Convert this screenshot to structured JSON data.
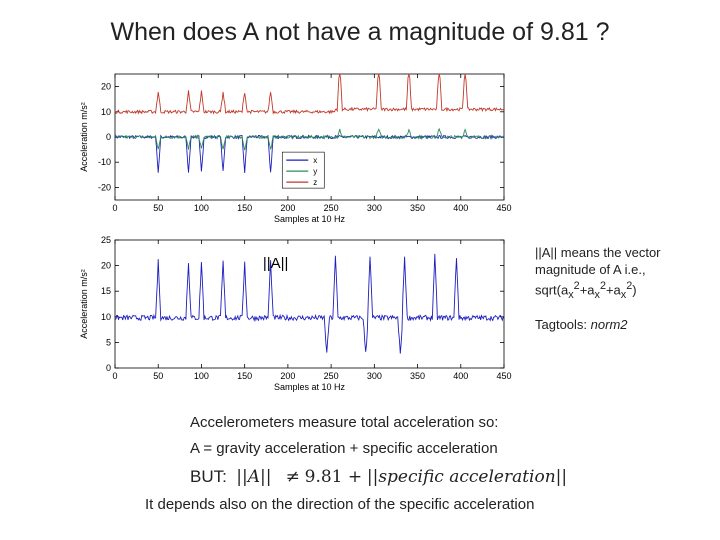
{
  "title": "When does A not have a magnitude of 9.81 ?",
  "side_text": {
    "line1": "||A|| means the vector",
    "line2": "magnitude of A i.e.,",
    "formula_prefix": "sqrt(a",
    "formula_sub": "x",
    "formula_sup": "2",
    "formula_plus": "+a",
    "formula_end": ")",
    "tagtools_label": "Tagtools:",
    "tagtools_func": "norm2"
  },
  "bottom_text": {
    "line1": "Accelerometers measure total acceleration so:",
    "line2": "A = gravity acceleration + specific acceleration",
    "but_label": "BUT:",
    "norm_A": "||A||",
    "neq": "≠",
    "value": "9.81 +",
    "norm_specific": "||specific acceleration||",
    "line4": "It depends also on the direction of the specific acceleration"
  },
  "chart_data": [
    {
      "type": "line",
      "xlabel": "Samples at 10 Hz",
      "ylabel": "Acceleration m/s²",
      "xlim": [
        0,
        450
      ],
      "ylim": [
        -25,
        25
      ],
      "xticks": [
        0,
        50,
        100,
        150,
        200,
        250,
        300,
        350,
        400,
        450
      ],
      "yticks": [
        -20,
        -10,
        0,
        10,
        20
      ],
      "legend_position": "inside-lower-right",
      "series": [
        {
          "name": "x",
          "color": "#1f1fbf",
          "baseline": 0
        },
        {
          "name": "y",
          "color": "#2e8b57",
          "baseline": 0
        },
        {
          "name": "z",
          "color": "#c0392b",
          "baseline": 10
        }
      ]
    },
    {
      "type": "line",
      "xlabel": "Samples at 10 Hz",
      "ylabel": "Acceleration m/s²",
      "annotation": "||A||",
      "xlim": [
        0,
        450
      ],
      "ylim": [
        0,
        25
      ],
      "xticks": [
        0,
        50,
        100,
        150,
        200,
        250,
        300,
        350,
        400,
        450
      ],
      "yticks": [
        0,
        5,
        10,
        15,
        20,
        25
      ],
      "series": [
        {
          "name": "||A||",
          "color": "#1f1fbf",
          "baseline": 9.8
        }
      ]
    }
  ]
}
